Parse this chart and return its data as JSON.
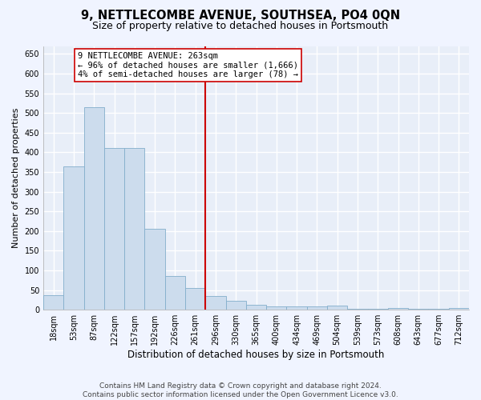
{
  "title": "9, NETTLECOMBE AVENUE, SOUTHSEA, PO4 0QN",
  "subtitle": "Size of property relative to detached houses in Portsmouth",
  "xlabel": "Distribution of detached houses by size in Portsmouth",
  "ylabel": "Number of detached properties",
  "bar_color": "#ccdced",
  "bar_edge_color": "#82aecb",
  "background_color": "#e8eef8",
  "grid_color": "#ffffff",
  "property_line_index": 7,
  "property_line_color": "#cc0000",
  "annotation_text": "9 NETTLECOMBE AVENUE: 263sqm\n← 96% of detached houses are smaller (1,666)\n4% of semi-detached houses are larger (78) →",
  "annotation_box_color": "#ffffff",
  "annotation_box_edge_color": "#cc0000",
  "categories": [
    "18sqm",
    "53sqm",
    "87sqm",
    "122sqm",
    "157sqm",
    "192sqm",
    "226sqm",
    "261sqm",
    "296sqm",
    "330sqm",
    "365sqm",
    "400sqm",
    "434sqm",
    "469sqm",
    "504sqm",
    "539sqm",
    "573sqm",
    "608sqm",
    "643sqm",
    "677sqm",
    "712sqm"
  ],
  "bar_heights": [
    38,
    365,
    515,
    410,
    410,
    205,
    85,
    55,
    35,
    22,
    12,
    8,
    8,
    8,
    10,
    2,
    2,
    5,
    2,
    2,
    5
  ],
  "ylim": [
    0,
    670
  ],
  "yticks": [
    0,
    50,
    100,
    150,
    200,
    250,
    300,
    350,
    400,
    450,
    500,
    550,
    600,
    650
  ],
  "title_fontsize": 10.5,
  "subtitle_fontsize": 9,
  "xlabel_fontsize": 8.5,
  "ylabel_fontsize": 8,
  "tick_fontsize": 7,
  "annot_fontsize": 7.5,
  "footer_fontsize": 6.5,
  "footer_line1": "Contains HM Land Registry data © Crown copyright and database right 2024.",
  "footer_line2": "Contains public sector information licensed under the Open Government Licence v3.0.",
  "fig_facecolor": "#f0f4ff"
}
